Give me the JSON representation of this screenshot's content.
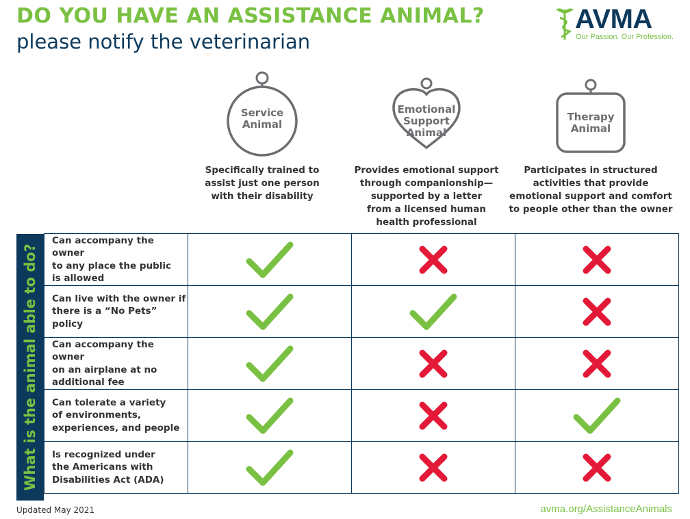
{
  "header": {
    "title": "DO YOU HAVE AN ASSISTANCE ANIMAL?",
    "subtitle": "please notify the veterinarian"
  },
  "logo": {
    "text": "AVMA",
    "tagline": "Our Passion. Our Profession.",
    "icon": "caduceus-icon"
  },
  "columns": [
    {
      "label_lines": [
        "Service",
        "Animal"
      ],
      "shape": "circle-tag",
      "description": [
        "Specifically trained to",
        "assist just one person",
        "with their disability"
      ]
    },
    {
      "label_lines": [
        "Emotional",
        "Support",
        "Animal"
      ],
      "shape": "heart-tag",
      "description": [
        "Provides emotional support",
        "through companionship—",
        "supported by a letter",
        "from a licensed human",
        "health professional"
      ]
    },
    {
      "label_lines": [
        "Therapy",
        "Animal"
      ],
      "shape": "square-tag",
      "description": [
        "Participates in structured",
        "activities that provide",
        "emotional support and comfort",
        "to people other than the owner"
      ]
    }
  ],
  "side_label": "What is the animal able to do?",
  "rows": [
    {
      "label_lines": [
        "Can accompany the owner",
        "to any place the public",
        "is allowed"
      ],
      "values": [
        "check",
        "cross",
        "cross"
      ]
    },
    {
      "label_lines": [
        "Can live with the owner if",
        "there is a “No Pets” policy"
      ],
      "values": [
        "check",
        "check",
        "cross"
      ]
    },
    {
      "label_lines": [
        "Can accompany the owner",
        "on an airplane at no",
        "additional fee"
      ],
      "values": [
        "check",
        "cross",
        "cross"
      ]
    },
    {
      "label_lines": [
        "Can tolerate a variety",
        "of environments,",
        "experiences, and people"
      ],
      "values": [
        "check",
        "cross",
        "check"
      ]
    },
    {
      "label_lines": [
        "Is recognized under",
        "the Americans with",
        "Disabilities Act (ADA)"
      ],
      "values": [
        "check",
        "cross",
        "cross"
      ]
    }
  ],
  "colors": {
    "green": "#7ac143",
    "red": "#e31937",
    "navy": "#0d3a5c",
    "gray": "#6d6e71"
  },
  "footer": {
    "updated": "Updated May 2021",
    "url": "avma.org/AssistanceAnimals"
  }
}
